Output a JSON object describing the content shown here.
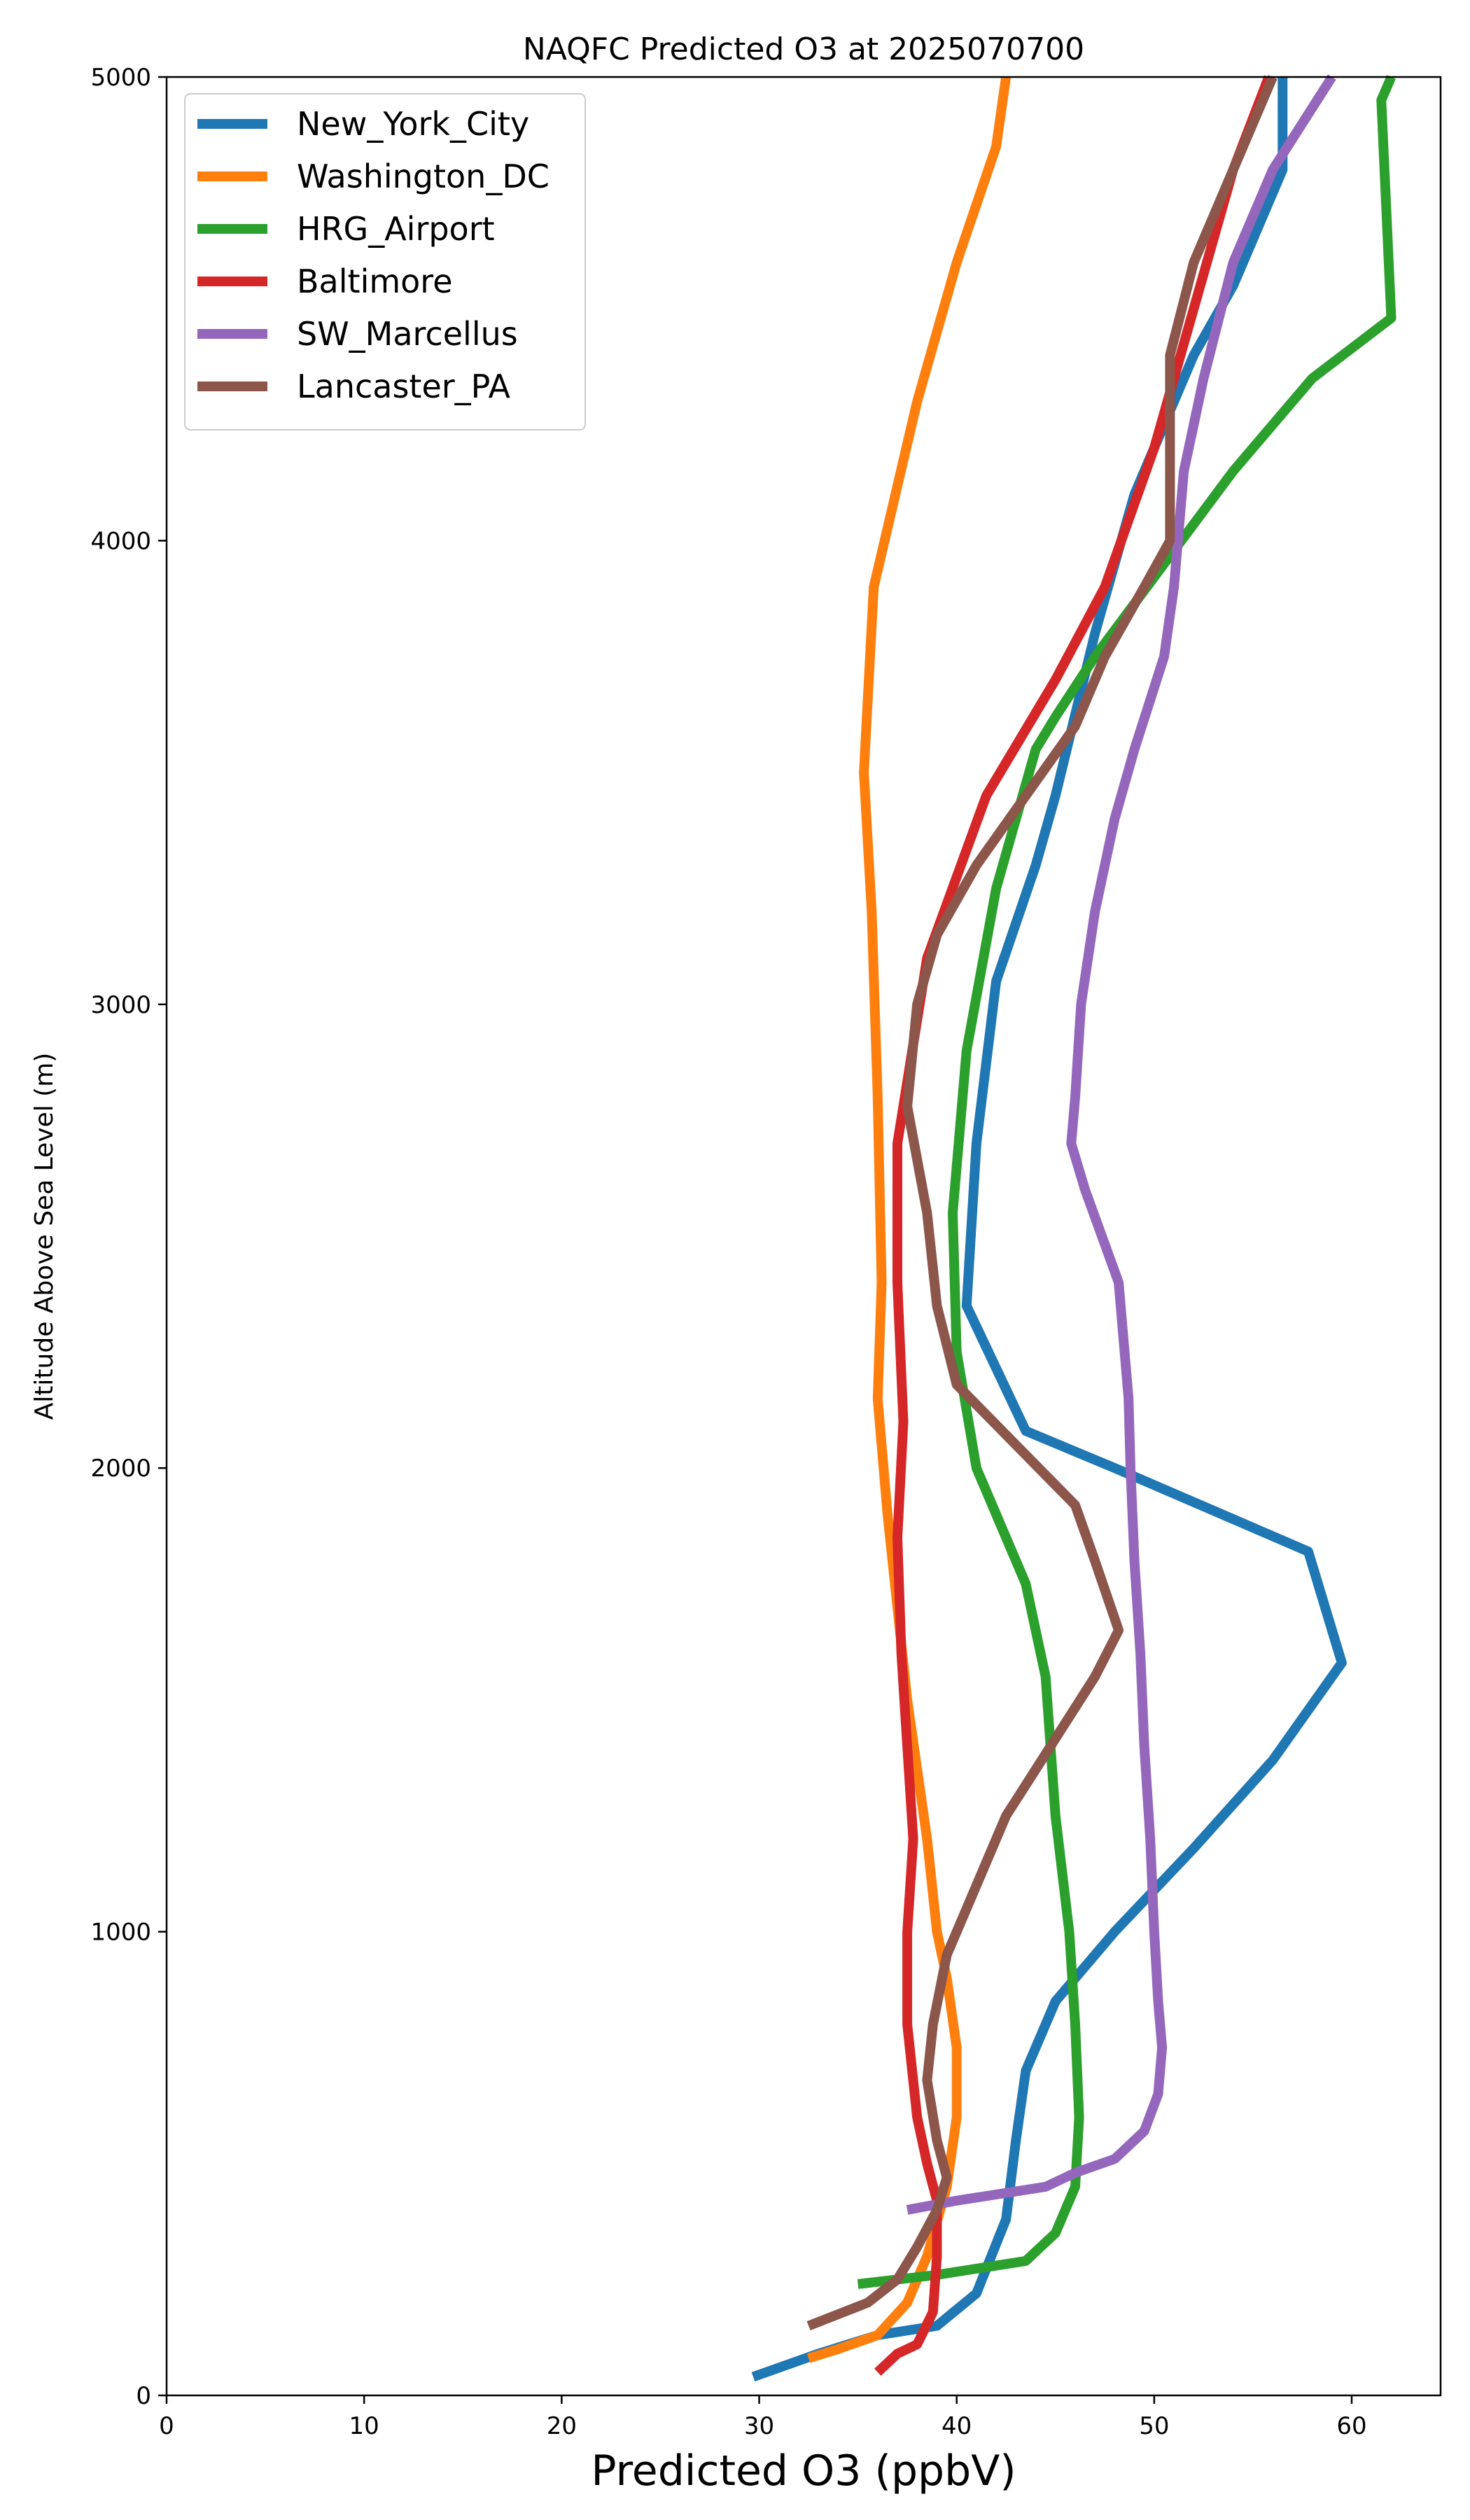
{
  "chart_data": {
    "type": "line",
    "title": "NAQFC Predicted O3 at 2025070700",
    "xlabel": "Predicted O3 (ppbV)",
    "ylabel": "Altitude Above Sea Level (m)",
    "xlim": [
      0,
      64.5
    ],
    "ylim": [
      0,
      5000
    ],
    "xticks": [
      "0",
      "10",
      "20",
      "30",
      "40",
      "50",
      "60"
    ],
    "yticks": [
      "0",
      "1000",
      "2000",
      "3000",
      "4000",
      "5000"
    ],
    "legend_position": "upper-left",
    "grid": false,
    "series": [
      {
        "name": "New_York_City",
        "color": "#1f77b4",
        "points": [
          [
            29.7,
            40
          ],
          [
            33,
            90
          ],
          [
            36,
            130
          ],
          [
            39,
            150
          ],
          [
            41,
            220
          ],
          [
            42.5,
            380
          ],
          [
            43,
            550
          ],
          [
            43.5,
            700
          ],
          [
            45,
            850
          ],
          [
            48,
            1000
          ],
          [
            52,
            1180
          ],
          [
            56,
            1370
          ],
          [
            59.5,
            1580
          ],
          [
            57.8,
            1820
          ],
          [
            48,
            2000
          ],
          [
            43.5,
            2080
          ],
          [
            40.5,
            2350
          ],
          [
            41,
            2700
          ],
          [
            42,
            3050
          ],
          [
            44,
            3300
          ],
          [
            45,
            3450
          ],
          [
            47,
            3800
          ],
          [
            49,
            4100
          ],
          [
            52,
            4400
          ],
          [
            54,
            4550
          ],
          [
            56.5,
            4800
          ],
          [
            56.5,
            5000
          ]
        ]
      },
      {
        "name": "Washington_DC",
        "color": "#ff7f0e",
        "points": [
          [
            32.5,
            80
          ],
          [
            34,
            100
          ],
          [
            36,
            130
          ],
          [
            37.5,
            200
          ],
          [
            38.5,
            300
          ],
          [
            39.5,
            450
          ],
          [
            40,
            600
          ],
          [
            40,
            750
          ],
          [
            39.5,
            900
          ],
          [
            39,
            1000
          ],
          [
            38.5,
            1200
          ],
          [
            37.5,
            1500
          ],
          [
            36.5,
            1900
          ],
          [
            36,
            2150
          ],
          [
            36.2,
            2400
          ],
          [
            36,
            2800
          ],
          [
            35.7,
            3200
          ],
          [
            35.3,
            3500
          ],
          [
            35.8,
            3900
          ],
          [
            38,
            4300
          ],
          [
            40,
            4600
          ],
          [
            42,
            4850
          ],
          [
            42.5,
            5000
          ]
        ]
      },
      {
        "name": "HRG_Airport",
        "color": "#2ca02c",
        "points": [
          [
            35,
            240
          ],
          [
            39,
            260
          ],
          [
            43.5,
            290
          ],
          [
            45,
            350
          ],
          [
            46,
            450
          ],
          [
            46.2,
            600
          ],
          [
            46,
            800
          ],
          [
            45.7,
            1000
          ],
          [
            45,
            1250
          ],
          [
            44.5,
            1550
          ],
          [
            43.5,
            1750
          ],
          [
            42,
            1900
          ],
          [
            41,
            2000
          ],
          [
            40,
            2250
          ],
          [
            39.8,
            2550
          ],
          [
            40.5,
            2900
          ],
          [
            42,
            3250
          ],
          [
            44,
            3550
          ],
          [
            45,
            3620
          ],
          [
            47,
            3750
          ],
          [
            50.5,
            3950
          ],
          [
            54,
            4150
          ],
          [
            58,
            4350
          ],
          [
            62,
            4480
          ],
          [
            61.5,
            4950
          ],
          [
            62,
            5000
          ]
        ]
      },
      {
        "name": "Baltimore",
        "color": "#d62728",
        "points": [
          [
            36,
            50
          ],
          [
            37,
            90
          ],
          [
            38,
            110
          ],
          [
            38.8,
            180
          ],
          [
            39,
            300
          ],
          [
            39,
            420
          ],
          [
            38.5,
            500
          ],
          [
            38,
            600
          ],
          [
            37.5,
            800
          ],
          [
            37.5,
            1000
          ],
          [
            37.8,
            1200
          ],
          [
            37.5,
            1400
          ],
          [
            37.2,
            1600
          ],
          [
            37,
            1850
          ],
          [
            37.3,
            2100
          ],
          [
            37,
            2400
          ],
          [
            37,
            2700
          ],
          [
            38.5,
            3100
          ],
          [
            41.5,
            3450
          ],
          [
            45,
            3700
          ],
          [
            47.5,
            3900
          ],
          [
            50,
            4200
          ],
          [
            52,
            4500
          ],
          [
            54,
            4800
          ],
          [
            55.8,
            5000
          ]
        ]
      },
      {
        "name": "SW_Marcellus",
        "color": "#9467bd",
        "points": [
          [
            37.5,
            400
          ],
          [
            40,
            420
          ],
          [
            44.5,
            450
          ],
          [
            46,
            480
          ],
          [
            48,
            510
          ],
          [
            49.5,
            570
          ],
          [
            50.2,
            650
          ],
          [
            50.4,
            750
          ],
          [
            50.2,
            850
          ],
          [
            50,
            1000
          ],
          [
            49.8,
            1200
          ],
          [
            49.5,
            1400
          ],
          [
            49.3,
            1600
          ],
          [
            49,
            1800
          ],
          [
            48.8,
            2000
          ],
          [
            48.7,
            2150
          ],
          [
            48.2,
            2400
          ],
          [
            46.5,
            2600
          ],
          [
            45.8,
            2700
          ],
          [
            46,
            2800
          ],
          [
            46.3,
            3000
          ],
          [
            47,
            3200
          ],
          [
            48,
            3400
          ],
          [
            49,
            3550
          ],
          [
            50.5,
            3750
          ],
          [
            51,
            3900
          ],
          [
            51.5,
            4150
          ],
          [
            52.5,
            4350
          ],
          [
            54,
            4600
          ],
          [
            56,
            4800
          ],
          [
            59,
            5000
          ]
        ]
      },
      {
        "name": "Lancaster_PA",
        "color": "#8c564b",
        "points": [
          [
            32.5,
            150
          ],
          [
            35.5,
            200
          ],
          [
            37,
            250
          ],
          [
            38,
            320
          ],
          [
            39,
            400
          ],
          [
            39.5,
            470
          ],
          [
            39,
            550
          ],
          [
            38.5,
            680
          ],
          [
            38.8,
            800
          ],
          [
            39.5,
            950
          ],
          [
            41,
            1100
          ],
          [
            42.5,
            1250
          ],
          [
            44,
            1350
          ],
          [
            45.5,
            1450
          ],
          [
            47,
            1550
          ],
          [
            48.2,
            1650
          ],
          [
            47,
            1800
          ],
          [
            46,
            1920
          ],
          [
            43,
            2050
          ],
          [
            40,
            2180
          ],
          [
            39,
            2350
          ],
          [
            38.5,
            2550
          ],
          [
            37.5,
            2780
          ],
          [
            38,
            3000
          ],
          [
            39,
            3150
          ],
          [
            41,
            3300
          ],
          [
            43.5,
            3450
          ],
          [
            46,
            3600
          ],
          [
            47.5,
            3750
          ],
          [
            49.5,
            3900
          ],
          [
            50.8,
            4000
          ],
          [
            50.8,
            4400
          ],
          [
            52,
            4600
          ],
          [
            54,
            4800
          ],
          [
            56,
            5000
          ]
        ]
      }
    ]
  }
}
